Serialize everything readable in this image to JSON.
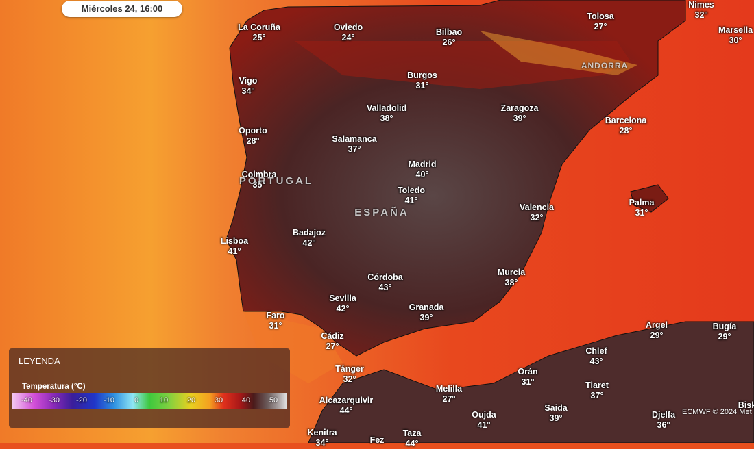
{
  "date_label": "Miércoles 24, 16:00",
  "cities": [
    {
      "name": "La Coruña",
      "temp": "25°"
    },
    {
      "name": "Oviedo",
      "temp": "24°"
    },
    {
      "name": "Bilbao",
      "temp": "26°"
    },
    {
      "name": "Tolosa",
      "temp": "27°"
    },
    {
      "name": "Nimes",
      "temp": "32°"
    },
    {
      "name": "Marsella",
      "temp": "30°"
    },
    {
      "name": "Vigo",
      "temp": "34°"
    },
    {
      "name": "Burgos",
      "temp": "31°"
    },
    {
      "name": "Valladolid",
      "temp": "38°"
    },
    {
      "name": "Zaragoza",
      "temp": "39°"
    },
    {
      "name": "Barcelona",
      "temp": "28°"
    },
    {
      "name": "Oporto",
      "temp": "28°"
    },
    {
      "name": "Salamanca",
      "temp": "37°"
    },
    {
      "name": "Madrid",
      "temp": "40°"
    },
    {
      "name": "Coimbra",
      "temp": "35°"
    },
    {
      "name": "Toledo",
      "temp": "41°"
    },
    {
      "name": "Valencia",
      "temp": "32°"
    },
    {
      "name": "Palma",
      "temp": "31°"
    },
    {
      "name": "Lisboa",
      "temp": "41°"
    },
    {
      "name": "Badajoz",
      "temp": "42°"
    },
    {
      "name": "Córdoba",
      "temp": "43°"
    },
    {
      "name": "Murcia",
      "temp": "38°"
    },
    {
      "name": "Sevilla",
      "temp": "42°"
    },
    {
      "name": "Granada",
      "temp": "39°"
    },
    {
      "name": "Faro",
      "temp": "31°"
    },
    {
      "name": "Argel",
      "temp": "29°"
    },
    {
      "name": "Bugía",
      "temp": "29°"
    },
    {
      "name": "Cádiz",
      "temp": "27°"
    },
    {
      "name": "Chlef",
      "temp": "43°"
    },
    {
      "name": "Tánger",
      "temp": "32°"
    },
    {
      "name": "Orán",
      "temp": "31°"
    },
    {
      "name": "Melilla",
      "temp": "27°"
    },
    {
      "name": "Tiaret",
      "temp": "37°"
    },
    {
      "name": "Alcazarquivir",
      "temp": "44°"
    },
    {
      "name": "Saida",
      "temp": "39°"
    },
    {
      "name": "Oujda",
      "temp": "41°"
    },
    {
      "name": "Djelfa",
      "temp": "36°"
    },
    {
      "name": "Kenitra",
      "temp": "34°"
    },
    {
      "name": "Fez"
    },
    {
      "name": "Taza",
      "temp": "44°"
    },
    {
      "name": "Bisk"
    }
  ],
  "regions": [
    "ANDORRA",
    "PORTUGAL",
    "ESPAÑA"
  ],
  "legend": {
    "title": "LEYENDA",
    "variable": "Temperatura (°C)",
    "scale": [
      -40,
      -30,
      -20,
      -10,
      0,
      10,
      20,
      30,
      40,
      50
    ]
  },
  "attribution": "ECMWF © 2024 Met"
}
